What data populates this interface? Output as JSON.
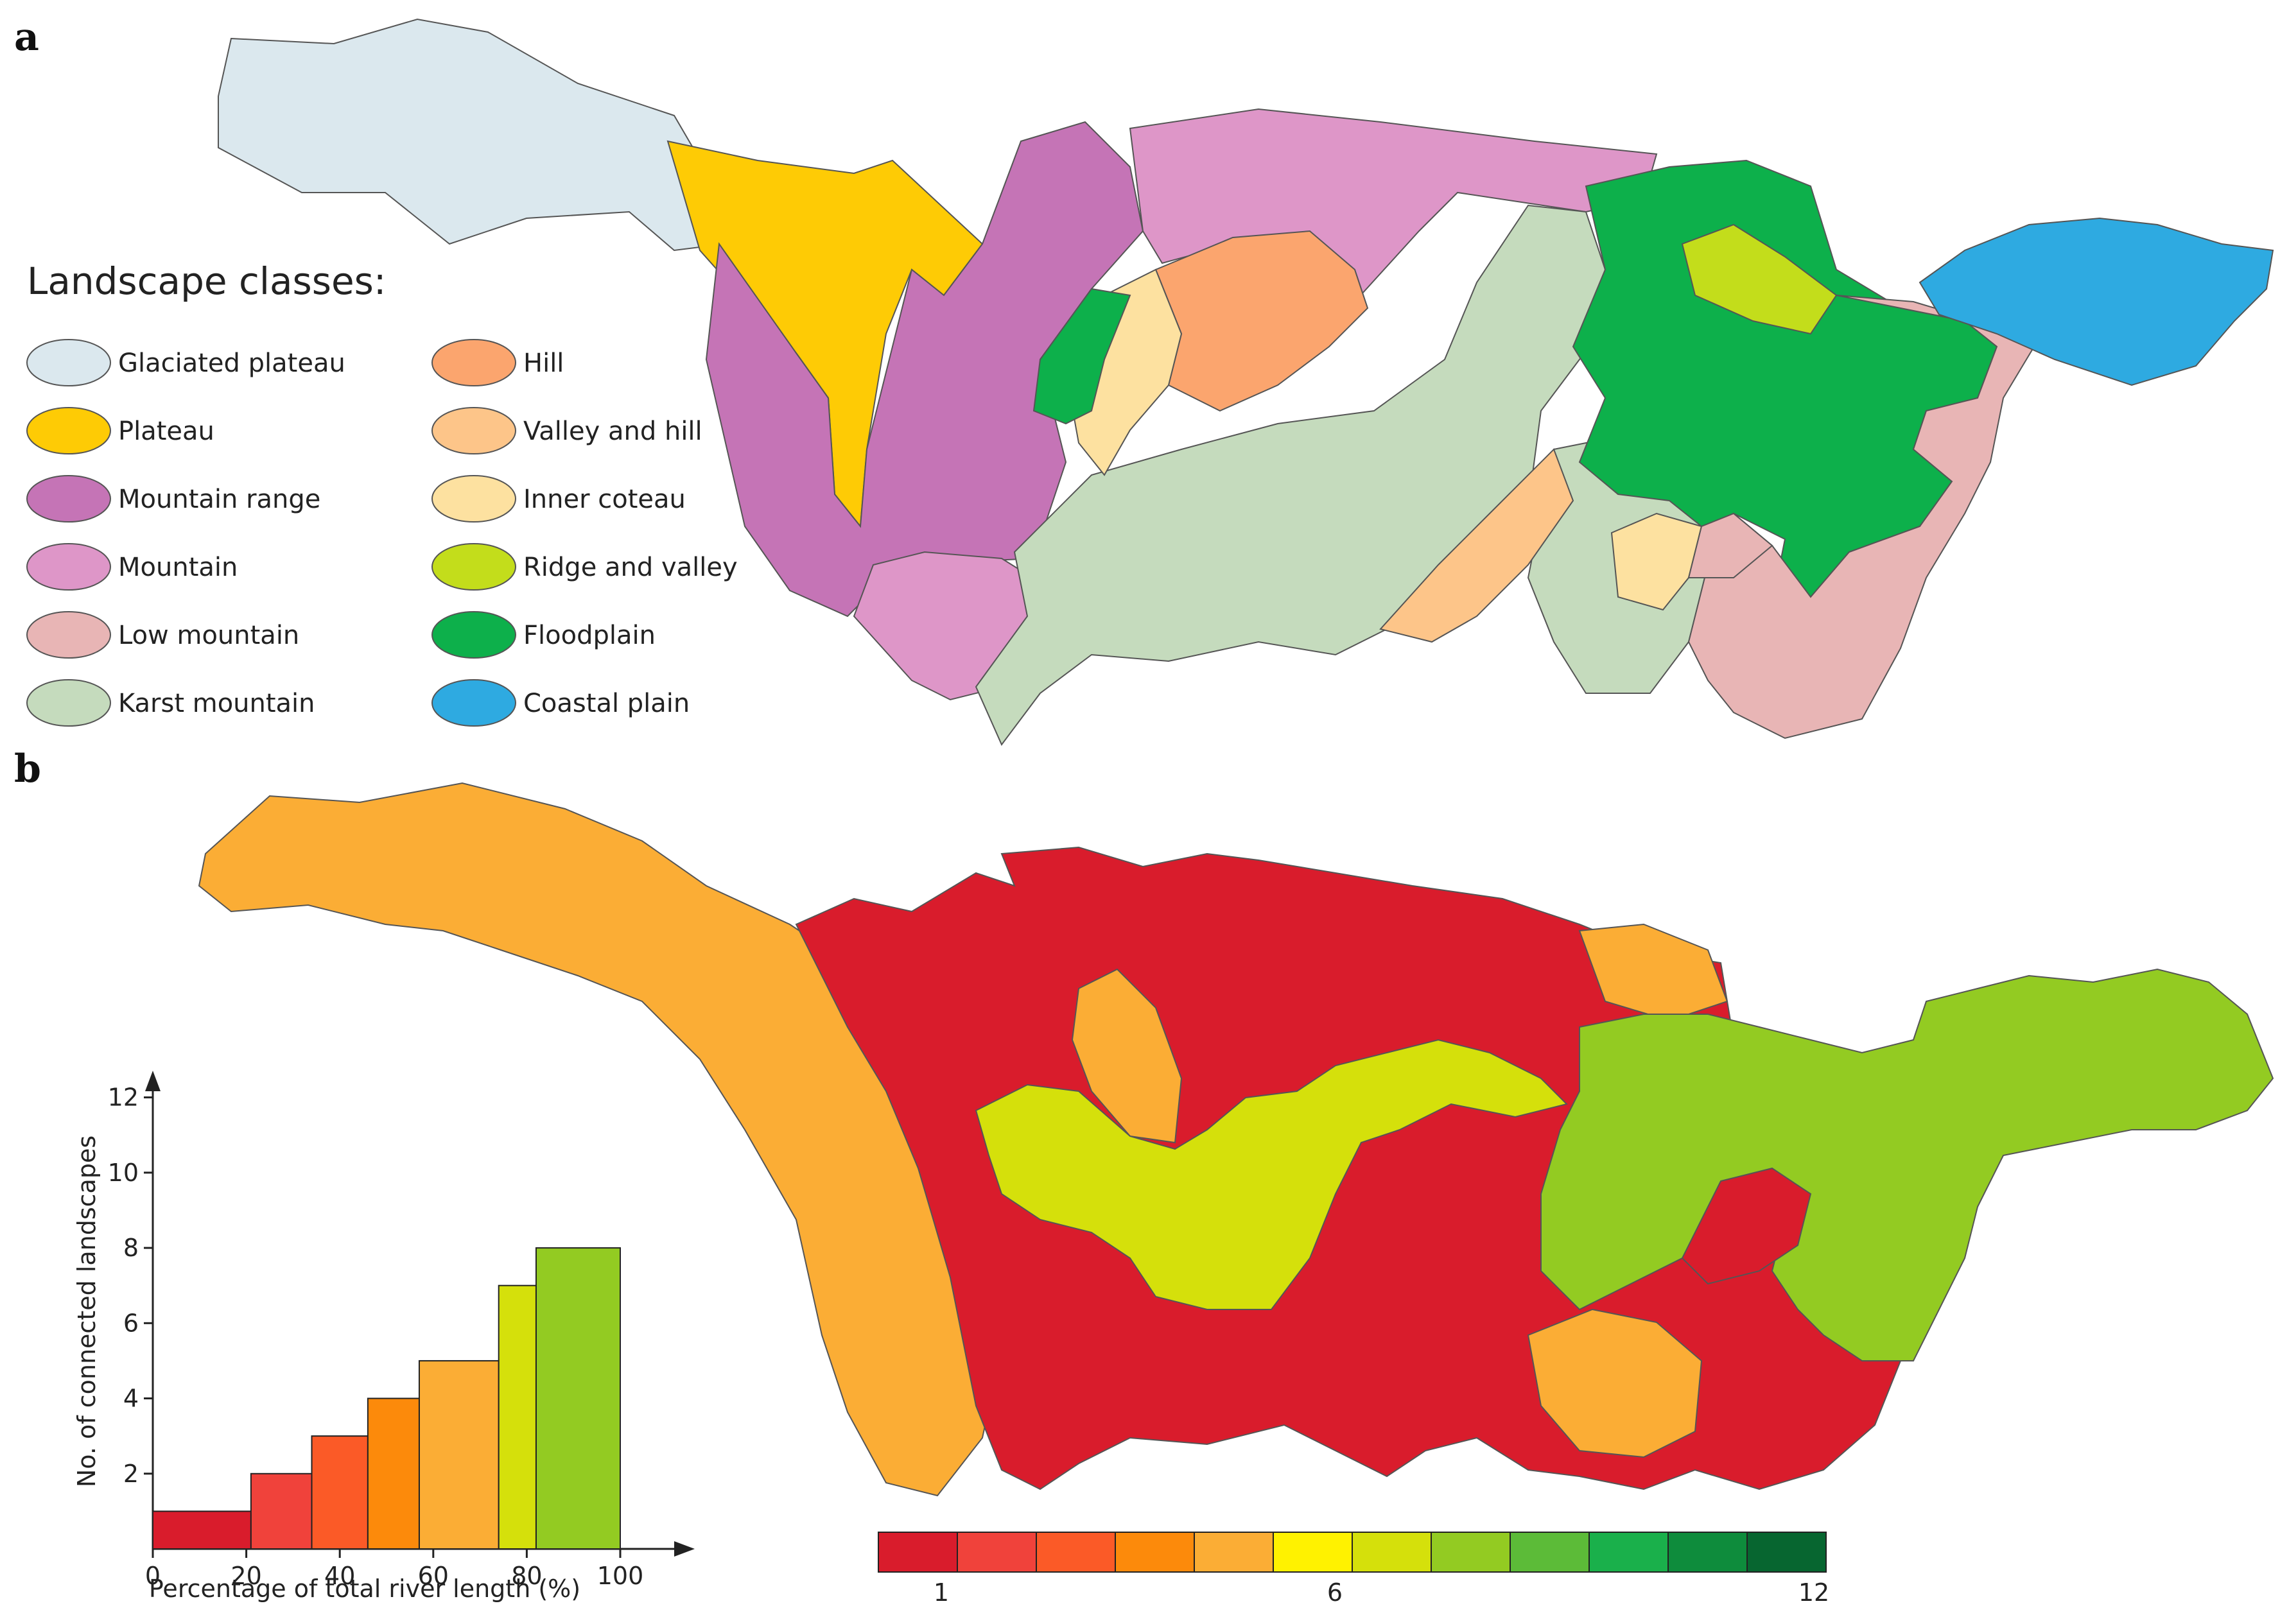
{
  "panel_a": {
    "letter": "a",
    "legend_title": "Landscape classes:",
    "classes": [
      {
        "label": "Glaciated plateau",
        "color": "#dbe8ee"
      },
      {
        "label": "Plateau",
        "color": "#fecb05"
      },
      {
        "label": "Mountain range",
        "color": "#c574b6"
      },
      {
        "label": "Mountain",
        "color": "#de96c8"
      },
      {
        "label": "Low mountain",
        "color": "#e8b5b5"
      },
      {
        "label": "Karst mountain",
        "color": "#c5dbbd"
      },
      {
        "label": "Hill",
        "color": "#fba56e"
      },
      {
        "label": "Valley and hill",
        "color": "#fdc589"
      },
      {
        "label": "Inner coteau",
        "color": "#fde1a0"
      },
      {
        "label": "Ridge and valley",
        "color": "#c3dd1b"
      },
      {
        "label": "Floodplain",
        "color": "#0db04b"
      },
      {
        "label": "Coastal plain",
        "color": "#2eaae1"
      }
    ]
  },
  "panel_b": {
    "letter": "b",
    "color_scale": {
      "colors": [
        "#d91c2c",
        "#f0423b",
        "#fb5a27",
        "#fc8a0b",
        "#fbad35",
        "#fff200",
        "#d5e00b",
        "#93cb22",
        "#5cbb38",
        "#1ab04b",
        "#0e8c3c",
        "#076630"
      ],
      "tick_labels": [
        "1",
        "6",
        "12"
      ]
    }
  },
  "chart_data": {
    "type": "bar",
    "xlabel": "Percentage of total river length (%)",
    "ylabel": "No. of connected landscapes",
    "xlim": [
      0,
      100
    ],
    "ylim": [
      0,
      13
    ],
    "x_ticks": [
      "0",
      "20",
      "40",
      "60",
      "80",
      "100"
    ],
    "y_ticks": [
      "2",
      "4",
      "6",
      "8",
      "10",
      "12"
    ],
    "bars": [
      {
        "x_start": 0,
        "x_end": 21,
        "value": 1,
        "color": "#d91c2c"
      },
      {
        "x_start": 21,
        "x_end": 34,
        "value": 2,
        "color": "#f0423b"
      },
      {
        "x_start": 34,
        "x_end": 46,
        "value": 3,
        "color": "#fb5a27"
      },
      {
        "x_start": 46,
        "x_end": 57,
        "value": 4,
        "color": "#fc8a0b"
      },
      {
        "x_start": 57,
        "x_end": 74,
        "value": 5,
        "color": "#fbad35"
      },
      {
        "x_start": 74,
        "x_end": 82,
        "value": 7,
        "color": "#d5e00b"
      },
      {
        "x_start": 82,
        "x_end": 100,
        "value": 8,
        "color": "#93cb22"
      }
    ]
  }
}
